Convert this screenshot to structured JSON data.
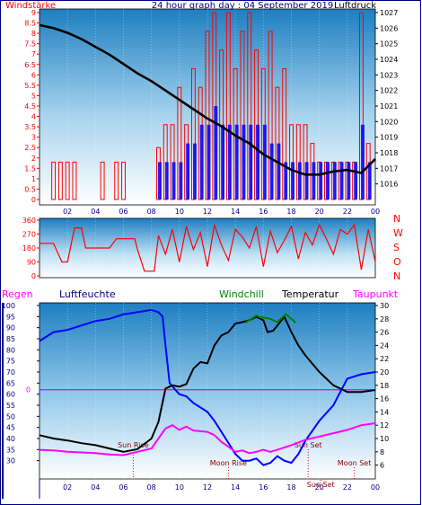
{
  "colors": {
    "wind_speed": "#ff0000",
    "wind_gust": "#0000ff",
    "pressure": "#000000",
    "direction": "#ff0000",
    "humidity": "#0000ff",
    "windchill": "#008000",
    "temperature": "#000000",
    "dewpoint": "#ff00ff",
    "reference_line": "#ff00ff",
    "markers": "#ff0000",
    "background": "#3399cc",
    "sunrise_label": "#8b0000"
  },
  "chart_data": [
    {
      "id": "wind_pressure",
      "type": "bar",
      "title": "24 hour graph day : 04 September 2019",
      "left_label": "Windstärke",
      "right_label": "Luftdruck",
      "ylim_left": [
        0,
        9
      ],
      "ylim_right": [
        1015,
        1027
      ],
      "yticks_left": [
        "0",
        "0.5",
        "1",
        "1.5",
        "2",
        "2.5",
        "3",
        "3.5",
        "4",
        "4.5",
        "5",
        "5.5",
        "6",
        "6.5",
        "7",
        "7.5",
        "8",
        "8.5",
        "9"
      ],
      "yticks_right": [
        "1016",
        "1017",
        "1018",
        "1019",
        "1020",
        "1021",
        "1022",
        "1023",
        "1024",
        "1025",
        "1026",
        "1027"
      ],
      "xticks": [
        "02",
        "04",
        "06",
        "08",
        "10",
        "12",
        "14",
        "16",
        "18",
        "20",
        "22",
        "00"
      ],
      "xlim": [
        0,
        24
      ],
      "series": [
        {
          "name": "Windstärke",
          "x": [
            1,
            1.5,
            2,
            2.5,
            4.5,
            5.5,
            6,
            8.5,
            9,
            9.5,
            10,
            10.5,
            11,
            11.5,
            12,
            12.5,
            13,
            13.5,
            14,
            14.5,
            15,
            15.5,
            16,
            16.5,
            17,
            17.5,
            18,
            18.5,
            19,
            19.5,
            20,
            20.5,
            21,
            21.5,
            22,
            22.5,
            23,
            23.5
          ],
          "values": [
            1.8,
            1.8,
            1.8,
            1.8,
            1.8,
            1.8,
            1.8,
            2.5,
            3.6,
            3.6,
            5.4,
            3.6,
            6.3,
            5.4,
            8.1,
            9,
            7.2,
            9,
            6.3,
            8.1,
            9,
            7.2,
            6.3,
            8.1,
            5.4,
            6.3,
            3.6,
            3.6,
            3.6,
            2.7,
            1.8,
            1.8,
            1.8,
            1.8,
            1.8,
            1.8,
            9,
            2.7
          ]
        },
        {
          "name": "Böen",
          "x": [
            8.5,
            9,
            9.5,
            10,
            10.5,
            11,
            11.5,
            12,
            12.5,
            13,
            13.5,
            14,
            14.5,
            15,
            15.5,
            16,
            16.5,
            17,
            17.5,
            18,
            18.5,
            19,
            19.5,
            20,
            20.5,
            21,
            21.5,
            22,
            22.5,
            23,
            23.5
          ],
          "values": [
            1.8,
            1.8,
            1.8,
            1.8,
            2.7,
            2.7,
            3.6,
            3.6,
            4.5,
            3.6,
            3.6,
            3.6,
            3.6,
            3.6,
            3.6,
            3.6,
            2.7,
            2.7,
            1.8,
            1.8,
            1.8,
            1.8,
            1.8,
            1.8,
            1.8,
            1.8,
            1.8,
            1.8,
            1.8,
            3.6,
            1.8
          ]
        },
        {
          "name": "Luftdruck",
          "x": [
            0,
            1,
            2,
            3,
            4,
            5,
            6,
            7,
            8,
            9,
            10,
            11,
            12,
            13,
            14,
            15,
            16,
            17,
            18,
            19,
            20,
            21,
            22,
            23,
            24
          ],
          "values": [
            1026.2,
            1026.0,
            1025.7,
            1025.3,
            1024.8,
            1024.3,
            1023.7,
            1023.1,
            1022.6,
            1022.0,
            1021.4,
            1020.8,
            1020.2,
            1019.7,
            1019.1,
            1018.6,
            1017.9,
            1017.4,
            1016.9,
            1016.6,
            1016.6,
            1016.8,
            1016.9,
            1016.7,
            1017.6
          ]
        }
      ]
    },
    {
      "id": "wind_direction",
      "type": "line",
      "ylim": [
        0,
        360
      ],
      "yticks": [
        "0",
        "90",
        "180",
        "270",
        "360"
      ],
      "direction_labels": [
        "N",
        "W",
        "S",
        "O",
        "N"
      ],
      "xlim": [
        0,
        24
      ],
      "series": [
        {
          "name": "Windrichtung",
          "x": [
            0,
            1,
            1.6,
            2,
            2.5,
            3,
            3.3,
            3.5,
            4,
            5,
            5.5,
            6,
            6.8,
            7,
            7.5,
            8,
            8.2,
            8.5,
            9,
            9.5,
            10,
            10.5,
            11,
            11.5,
            12,
            12.5,
            13,
            13.5,
            14,
            14.5,
            15,
            15.5,
            16,
            16.5,
            17,
            17.5,
            18,
            18.5,
            19,
            19.5,
            20,
            20.5,
            21,
            21.5,
            22,
            22.5,
            23,
            23.5,
            24
          ],
          "values": [
            210,
            210,
            90,
            90,
            310,
            310,
            180,
            180,
            180,
            180,
            240,
            240,
            240,
            170,
            30,
            30,
            30,
            260,
            140,
            300,
            90,
            320,
            170,
            280,
            60,
            330,
            200,
            100,
            300,
            250,
            180,
            320,
            60,
            290,
            150,
            230,
            320,
            110,
            280,
            200,
            330,
            240,
            140,
            300,
            270,
            330,
            40,
            300,
            90
          ]
        }
      ]
    },
    {
      "id": "temp_humidity",
      "type": "line",
      "left_label": "Regen",
      "left_label2": "Luftfeuchte",
      "mid_label": "Windchill",
      "mid_label2": "Temperatur",
      "right_label": "Taupunkt",
      "ylim_left": [
        25,
        100
      ],
      "ylim_right": [
        5,
        30
      ],
      "yticks_left": [
        "30",
        "35",
        "40",
        "45",
        "50",
        "55",
        "60",
        "65",
        "70",
        "75",
        "80",
        "85",
        "90",
        "95",
        "100"
      ],
      "yticks_right": [
        "6",
        "8",
        "10",
        "12",
        "14",
        "16",
        "18",
        "20",
        "22",
        "24",
        "26",
        "28",
        "30"
      ],
      "ref_line_label": "0",
      "ref_line_value": 62,
      "xticks": [
        "02",
        "04",
        "06",
        "08",
        "10",
        "12",
        "14",
        "16",
        "18",
        "20",
        "22",
        "00"
      ],
      "xlim": [
        0,
        24
      ],
      "annotations": [
        {
          "text": "Sun Rise",
          "x": 6.7
        },
        {
          "text": "Moon Rise",
          "x": 13.5
        },
        {
          "text": "Sun Set",
          "x": 19.2
        },
        {
          "text": "Moon Set",
          "x": 22.5
        },
        {
          "text": "Sun Set",
          "x": 20.1
        }
      ],
      "series": [
        {
          "name": "Luftfeuchte",
          "axis": "left",
          "x": [
            0,
            1,
            2,
            3,
            4,
            5,
            6,
            7,
            8,
            8.5,
            8.8,
            9,
            9.3,
            9.7,
            10,
            10.5,
            11,
            12,
            12.5,
            13,
            14,
            14.5,
            15,
            15.5,
            16,
            16.5,
            17,
            17.5,
            18,
            18.5,
            19,
            20,
            21,
            21.5,
            22,
            23,
            24
          ],
          "values": [
            84,
            88,
            89,
            91,
            93,
            94,
            96,
            97,
            98,
            97,
            95,
            82,
            65,
            62,
            60,
            59,
            56,
            52,
            48,
            43,
            33,
            30,
            30,
            31,
            28,
            29,
            32,
            30,
            29,
            33,
            39,
            48,
            55,
            61,
            67,
            69,
            70
          ]
        },
        {
          "name": "Temperatur",
          "axis": "right",
          "x": [
            0,
            1,
            2,
            3,
            4,
            5,
            6,
            7,
            8,
            8.5,
            9,
            9.5,
            10,
            10.5,
            11,
            11.5,
            12,
            12.5,
            13,
            13.5,
            14,
            14.5,
            15,
            15.5,
            16,
            16.3,
            16.7,
            17,
            17.5,
            18,
            18.5,
            19,
            20,
            21,
            22,
            23,
            24
          ],
          "values": [
            10.5,
            10,
            9.7,
            9.3,
            9.0,
            8.5,
            8.0,
            8.4,
            10.0,
            12.5,
            17.5,
            18.0,
            17.8,
            18.2,
            20.5,
            21.5,
            21.3,
            24.0,
            25.5,
            26.0,
            27.3,
            27.5,
            27.8,
            28.3,
            27.8,
            26.0,
            26.2,
            27.0,
            28.3,
            26.0,
            24.0,
            22.5,
            20.0,
            18.0,
            17.0,
            17.0,
            17.3
          ]
        },
        {
          "name": "Windchill",
          "axis": "right",
          "x": [
            14.7,
            15,
            15.5,
            15.8,
            16,
            16.5,
            17,
            17.6,
            18,
            18.3
          ],
          "values": [
            27.4,
            27.8,
            28.5,
            28.2,
            28.2,
            28.0,
            27.5,
            28.7,
            28.0,
            27.4
          ]
        },
        {
          "name": "Taupunkt",
          "axis": "right",
          "x": [
            0,
            1,
            2,
            3,
            4,
            5,
            6,
            7,
            8,
            8.5,
            9,
            9.5,
            10,
            10.5,
            11,
            12,
            12.5,
            13,
            14,
            14.5,
            15,
            15.5,
            16,
            16.5,
            17,
            18,
            19,
            20,
            21,
            22,
            23,
            24
          ],
          "values": [
            8.3,
            8.2,
            8.0,
            7.9,
            7.8,
            7.6,
            7.5,
            8.0,
            8.5,
            10.0,
            11.5,
            12.0,
            11.3,
            11.8,
            11.2,
            11.0,
            10.5,
            9.5,
            8.0,
            8.2,
            7.8,
            8.0,
            8.3,
            8.0,
            8.3,
            9.0,
            9.8,
            10.3,
            10.8,
            11.3,
            12.0,
            12.3
          ]
        }
      ]
    }
  ]
}
